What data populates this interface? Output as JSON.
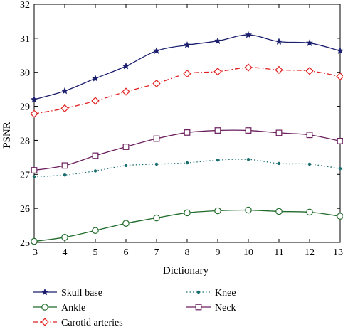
{
  "chart_data": {
    "type": "line",
    "title": "",
    "xlabel": "Dictionary",
    "ylabel": "PSNR",
    "xlim": [
      3,
      13
    ],
    "ylim": [
      25,
      32
    ],
    "x": [
      3,
      4,
      5,
      6,
      7,
      8,
      9,
      10,
      11,
      12,
      13
    ],
    "x_ticks": [
      3,
      4,
      5,
      6,
      7,
      8,
      9,
      10,
      11,
      12,
      13
    ],
    "y_ticks": [
      25,
      26,
      27,
      28,
      29,
      30,
      31,
      32
    ],
    "grid": false,
    "legend_position": "bottom",
    "series": [
      {
        "name": "Skull base",
        "color": "#1b1f6e",
        "line_style": "solid",
        "marker": "star",
        "values": [
          29.2,
          29.45,
          29.82,
          30.18,
          30.63,
          30.8,
          30.92,
          31.1,
          30.9,
          30.86,
          30.63
        ]
      },
      {
        "name": "Ankle",
        "color": "#1f6b2a",
        "line_style": "solid",
        "marker": "circle",
        "values": [
          25.03,
          25.15,
          25.35,
          25.56,
          25.72,
          25.87,
          25.93,
          25.95,
          25.91,
          25.89,
          25.77
        ]
      },
      {
        "name": "Carotid arteries",
        "color": "#e02020",
        "line_style": "dashdot",
        "marker": "diamond",
        "values": [
          28.78,
          28.94,
          29.16,
          29.43,
          29.67,
          29.96,
          30.02,
          30.14,
          30.07,
          30.04,
          29.88
        ]
      },
      {
        "name": "Knee",
        "color": "#1a6e6e",
        "line_style": "dotted",
        "marker": "dot",
        "values": [
          26.93,
          26.98,
          27.1,
          27.26,
          27.3,
          27.34,
          27.42,
          27.44,
          27.32,
          27.3,
          27.17
        ]
      },
      {
        "name": "Neck",
        "color": "#6b1f5e",
        "line_style": "solid",
        "marker": "square",
        "values": [
          27.12,
          27.26,
          27.55,
          27.81,
          28.05,
          28.23,
          28.29,
          28.29,
          28.22,
          28.16,
          27.98
        ]
      }
    ]
  }
}
